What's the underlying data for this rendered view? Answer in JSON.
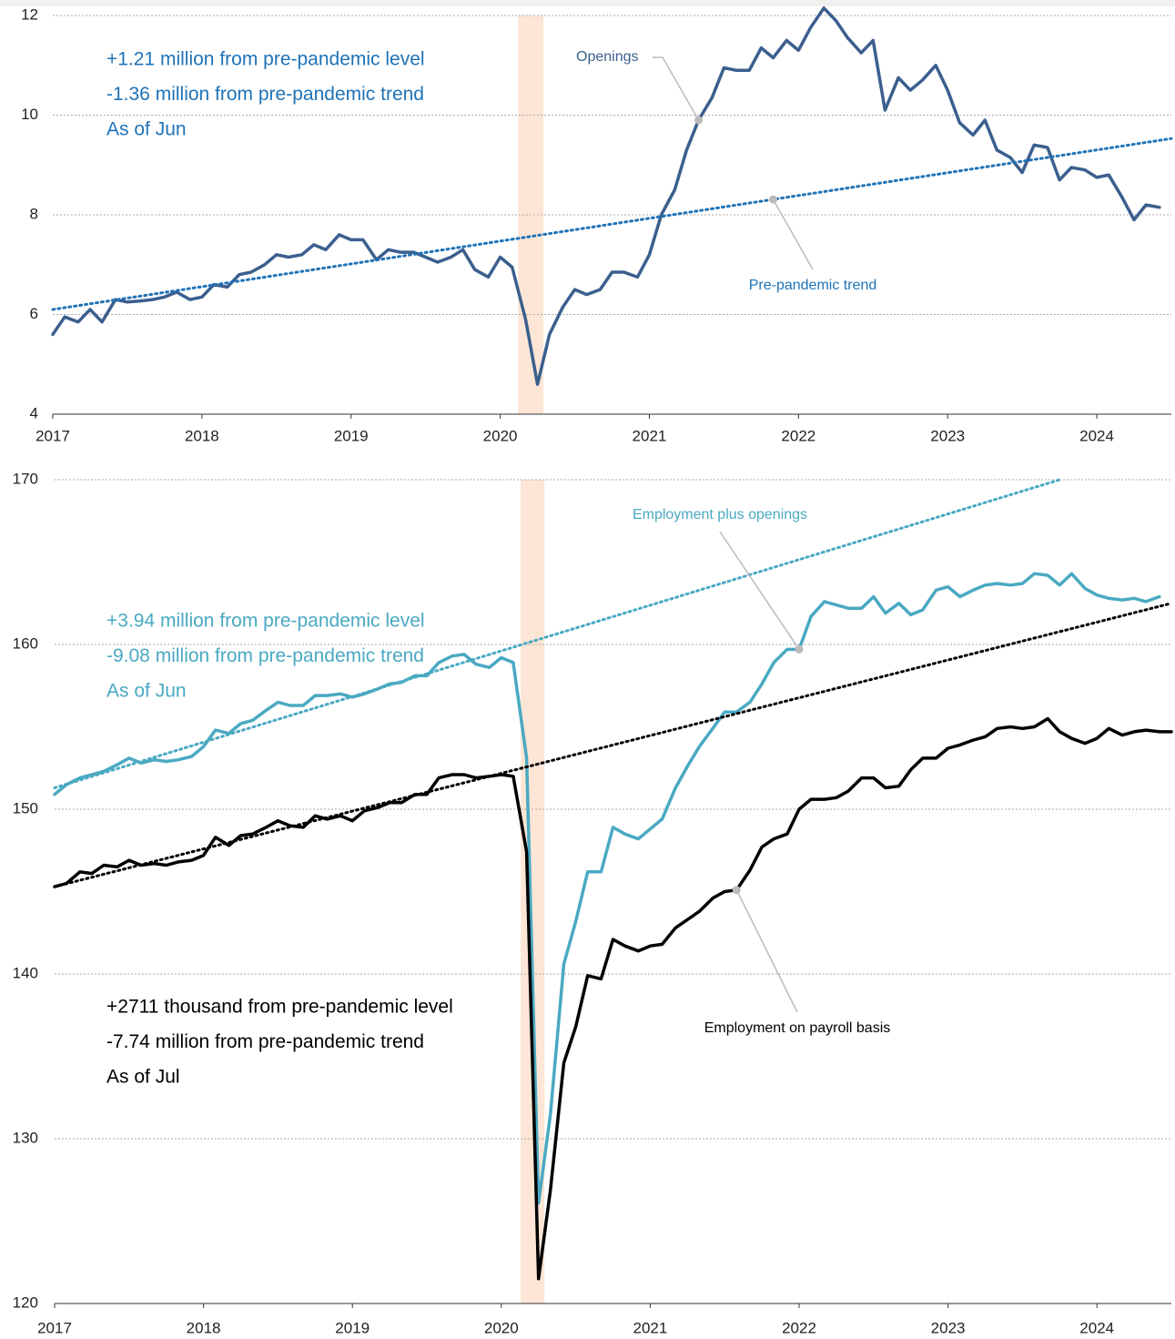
{
  "chart_data": [
    {
      "type": "line",
      "x": [
        2017,
        2017.08,
        2017.17,
        2017.25,
        2017.33,
        2017.42,
        2017.5,
        2017.58,
        2017.67,
        2017.75,
        2017.83,
        2017.92,
        2018,
        2018.08,
        2018.17,
        2018.25,
        2018.33,
        2018.42,
        2018.5,
        2018.58,
        2018.67,
        2018.75,
        2018.83,
        2018.92,
        2019,
        2019.08,
        2019.17,
        2019.25,
        2019.33,
        2019.42,
        2019.5,
        2019.58,
        2019.67,
        2019.75,
        2019.83,
        2019.92,
        2020,
        2020.08,
        2020.17,
        2020.25,
        2020.33,
        2020.42,
        2020.5,
        2020.58,
        2020.67,
        2020.75,
        2020.83,
        2020.92,
        2021,
        2021.08,
        2021.17,
        2021.25,
        2021.33,
        2021.42,
        2021.5,
        2021.58,
        2021.67,
        2021.75,
        2021.83,
        2021.92,
        2022,
        2022.08,
        2022.17,
        2022.25,
        2022.33,
        2022.42,
        2022.5,
        2022.58,
        2022.67,
        2022.75,
        2022.83,
        2022.92,
        2023,
        2023.08,
        2023.17,
        2023.25,
        2023.33,
        2023.42,
        2023.5,
        2023.58,
        2023.67,
        2023.75,
        2023.83,
        2023.92,
        2024,
        2024.08,
        2024.17,
        2024.25,
        2024.33,
        2024.42
      ],
      "xlim": [
        2017,
        2024.5
      ],
      "xticks": [
        2017,
        2018,
        2019,
        2020,
        2021,
        2022,
        2023,
        2024
      ],
      "ylim": [
        4,
        12
      ],
      "yticks": [
        4,
        6,
        8,
        10,
        12
      ],
      "grid": true,
      "recession": [
        2020.12,
        2020.29
      ],
      "recession_color": "#fde6d6",
      "series": [
        {
          "name": "Openings",
          "color": "#3b5f8e",
          "dash": false,
          "values": [
            5.6,
            5.95,
            5.85,
            6.1,
            5.85,
            6.3,
            6.25,
            6.27,
            6.3,
            6.35,
            6.45,
            6.3,
            6.35,
            6.6,
            6.55,
            6.8,
            6.85,
            7.0,
            7.2,
            7.15,
            7.2,
            7.4,
            7.3,
            7.6,
            7.5,
            7.5,
            7.1,
            7.3,
            7.25,
            7.25,
            7.15,
            7.05,
            7.15,
            7.3,
            6.9,
            6.75,
            7.15,
            6.95,
            5.9,
            4.6,
            5.6,
            6.15,
            6.5,
            6.4,
            6.5,
            6.85,
            6.85,
            6.75,
            7.2,
            8.0,
            8.5,
            9.3,
            9.9,
            10.35,
            10.95,
            10.9,
            10.9,
            11.35,
            11.15,
            11.5,
            11.3,
            11.75,
            12.15,
            11.9,
            11.55,
            11.25,
            11.5,
            10.1,
            10.75,
            10.5,
            10.7,
            11.0,
            10.5,
            9.85,
            9.6,
            9.9,
            9.3,
            9.15,
            8.85,
            9.4,
            9.35,
            8.7,
            8.95,
            8.9,
            8.75,
            8.8,
            8.35,
            7.9,
            8.2,
            8.15
          ]
        },
        {
          "name": "Pre-pandemic trend",
          "color": "#1f73b7",
          "dash": true,
          "x": [
            2017,
            2024.5
          ],
          "values": [
            6.1,
            9.53
          ]
        }
      ],
      "notes": [
        {
          "color": "#1f73b7",
          "lines": [
            "+1.21 million from pre-pandemic level",
            "-1.36 million from pre-pandemic trend",
            "As of Jun"
          ]
        }
      ]
    },
    {
      "type": "line",
      "x": [
        2017,
        2017.08,
        2017.17,
        2017.25,
        2017.33,
        2017.42,
        2017.5,
        2017.58,
        2017.67,
        2017.75,
        2017.83,
        2017.92,
        2018,
        2018.08,
        2018.17,
        2018.25,
        2018.33,
        2018.42,
        2018.5,
        2018.58,
        2018.67,
        2018.75,
        2018.83,
        2018.92,
        2019,
        2019.08,
        2019.17,
        2019.25,
        2019.33,
        2019.42,
        2019.5,
        2019.58,
        2019.67,
        2019.75,
        2019.83,
        2019.92,
        2020,
        2020.08,
        2020.17,
        2020.25,
        2020.33,
        2020.42,
        2020.5,
        2020.58,
        2020.67,
        2020.75,
        2020.83,
        2020.92,
        2021,
        2021.08,
        2021.17,
        2021.25,
        2021.33,
        2021.42,
        2021.5,
        2021.58,
        2021.67,
        2021.75,
        2021.83,
        2021.92,
        2022,
        2022.08,
        2022.17,
        2022.25,
        2022.33,
        2022.42,
        2022.5,
        2022.58,
        2022.67,
        2022.75,
        2022.83,
        2022.92,
        2023,
        2023.08,
        2023.17,
        2023.25,
        2023.33,
        2023.42,
        2023.5,
        2023.58,
        2023.67,
        2023.75,
        2023.83,
        2023.92,
        2024,
        2024.08,
        2024.17,
        2024.25,
        2024.33,
        2024.42,
        2024.5
      ],
      "xlim": [
        2017,
        2024.5
      ],
      "xticks": [
        2017,
        2018,
        2019,
        2020,
        2021,
        2022,
        2023,
        2024
      ],
      "ylim": [
        120,
        170
      ],
      "yticks": [
        120,
        130,
        140,
        150,
        160,
        170
      ],
      "grid": true,
      "recession": [
        2020.13,
        2020.29
      ],
      "recession_color": "#fde6d6",
      "series": [
        {
          "name": "Employment plus openings",
          "color": "#4aa9c2",
          "dash": false,
          "values": [
            150.9,
            151.5,
            151.9,
            152.1,
            152.3,
            152.7,
            153.1,
            152.8,
            153.0,
            152.9,
            153.0,
            153.2,
            153.8,
            154.8,
            154.6,
            155.2,
            155.4,
            156.0,
            156.5,
            156.3,
            156.3,
            156.9,
            156.9,
            157.0,
            156.8,
            157.0,
            157.3,
            157.6,
            157.7,
            158.1,
            158.1,
            158.9,
            159.3,
            159.4,
            158.8,
            158.6,
            159.2,
            158.9,
            153.1,
            126.1,
            131.5,
            140.6,
            143.2,
            146.2,
            146.2,
            148.9,
            148.5,
            148.2,
            148.8,
            149.4,
            151.3,
            152.6,
            153.8,
            154.9,
            155.9,
            155.9,
            156.5,
            157.6,
            158.9,
            159.7,
            159.7,
            161.7,
            162.6,
            162.4,
            162.2,
            162.2,
            162.9,
            161.9,
            162.5,
            161.8,
            162.1,
            163.3,
            163.5,
            162.9,
            163.3,
            163.6,
            163.7,
            163.6,
            163.7,
            164.3,
            164.2,
            163.6,
            164.3,
            163.4,
            163.0,
            162.8,
            162.7,
            162.8,
            162.6,
            162.9,
            null
          ]
        },
        {
          "name": "Employment on payroll basis",
          "color": "#000000",
          "dash": false,
          "values": [
            145.3,
            145.5,
            146.2,
            146.1,
            146.6,
            146.5,
            146.9,
            146.6,
            146.7,
            146.6,
            146.8,
            146.9,
            147.2,
            148.3,
            147.8,
            148.4,
            148.5,
            148.9,
            149.3,
            149.0,
            148.9,
            149.6,
            149.4,
            149.6,
            149.3,
            149.9,
            150.1,
            150.4,
            150.4,
            150.9,
            150.9,
            151.9,
            152.1,
            152.1,
            151.9,
            152.0,
            152.1,
            152.0,
            147.4,
            121.5,
            126.9,
            134.6,
            136.8,
            139.9,
            139.7,
            142.1,
            141.7,
            141.4,
            141.7,
            141.8,
            142.8,
            143.3,
            143.8,
            144.6,
            145.0,
            145.1,
            146.3,
            147.7,
            148.2,
            148.5,
            150.0,
            150.6,
            150.6,
            150.7,
            151.1,
            151.9,
            151.9,
            151.3,
            151.4,
            152.4,
            153.1,
            153.1,
            153.7,
            153.9,
            154.2,
            154.4,
            154.9,
            155.0,
            154.9,
            155.0,
            155.5,
            154.7,
            154.3,
            154.0,
            154.3,
            154.9,
            154.5,
            154.7,
            154.8,
            154.7,
            154.7
          ]
        },
        {
          "color": "#4aa9c2",
          "dash": true,
          "x": [
            2017,
            2023.75
          ],
          "values": [
            151.3,
            170
          ]
        },
        {
          "color": "#000000",
          "dash": true,
          "x": [
            2017,
            2024.5
          ],
          "values": [
            145.3,
            162.5
          ]
        }
      ],
      "notes": [
        {
          "color": "#4aa9c2",
          "lines": [
            "+3.94 million from pre-pandemic level",
            "-9.08 million from pre-pandemic trend",
            "As of Jun"
          ]
        },
        {
          "color": "#000000",
          "lines": [
            "+2711 thousand from pre-pandemic level",
            "-7.74 million from pre-pandemic trend",
            "As of Jul"
          ]
        }
      ]
    }
  ]
}
